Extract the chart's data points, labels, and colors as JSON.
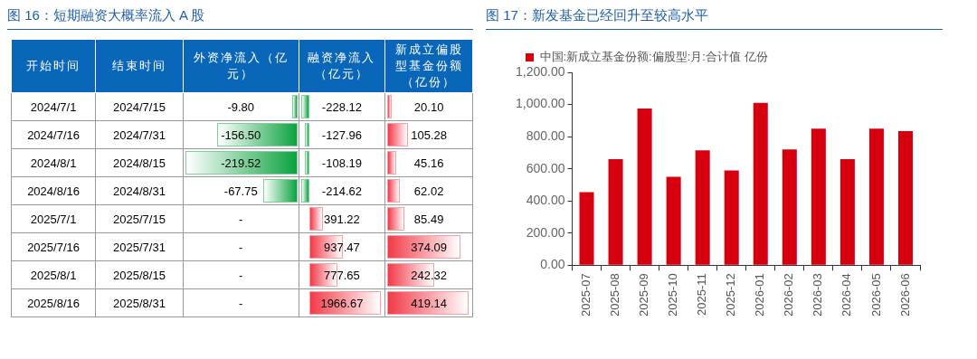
{
  "chart_data": [
    {
      "type": "heatmap",
      "title": "图 16：短期融资大概率流入 A 股",
      "annotations": [
        "开始时间",
        "结束时间"
      ],
      "categories": [
        "外资净流入（亿元）",
        "融资净流入（亿元）",
        "新成立偏股型基金份额（亿份）"
      ],
      "y2_categories": [
        "2024/7/1",
        "2024/7/16",
        "2024/8/1",
        "2024/8/16",
        "2025/7/1",
        "2025/7/16",
        "2025/8/1",
        "2025/8/16"
      ],
      "y_categories": [
        "2024/7/15",
        "2024/7/31",
        "2024/8/15",
        "2024/8/31",
        "2025/7/15",
        "2025/7/31",
        "2025/8/15",
        "2025/8/31"
      ],
      "cells": [
        [
          -9.8,
          -228.12,
          20.1
        ],
        [
          -156.5,
          -127.96,
          105.28
        ],
        [
          -219.52,
          -108.19,
          45.16
        ],
        [
          -67.75,
          -214.62,
          62.02
        ],
        [
          null,
          391.22,
          85.49
        ],
        [
          null,
          937.47,
          374.09
        ],
        [
          null,
          777.65,
          242.32
        ],
        [
          null,
          1966.67,
          419.14
        ]
      ],
      "cell_labels": [
        [
          "-9.80",
          "-228.12",
          "20.10"
        ],
        [
          "-156.50",
          "-127.96",
          "105.28"
        ],
        [
          "-219.52",
          "-108.19",
          "45.16"
        ],
        [
          "-67.75",
          "-214.62",
          "62.02"
        ],
        [
          "-",
          "391.22",
          "85.49"
        ],
        [
          "-",
          "937.47",
          "374.09"
        ],
        [
          "-",
          "777.65",
          "242.32"
        ],
        [
          "-",
          "1966.67",
          "419.14"
        ]
      ]
    },
    {
      "type": "bar",
      "title": "图 17：新发基金已经回升至较高水平",
      "categories": [
        "2025-07",
        "2025-08",
        "2025-09",
        "2025-10",
        "2025-11",
        "2025-12",
        "2026-01",
        "2026-02",
        "2026-03",
        "2026-04",
        "2026-05",
        "2026-06"
      ],
      "series": [
        {
          "name": "中国:新成立基金份额:偏股型:月:合计值 亿份",
          "color": "#d7000f",
          "values": [
            455,
            660,
            975,
            550,
            715,
            590,
            1010,
            720,
            850,
            660,
            850,
            835
          ]
        }
      ],
      "ylim": [
        0,
        1200
      ],
      "yticks": [
        {
          "value": 0,
          "label": "0.00"
        },
        {
          "value": 200,
          "label": "200.00"
        },
        {
          "value": 400,
          "label": "400.00"
        },
        {
          "value": 600,
          "label": "600.00"
        },
        {
          "value": 800,
          "label": "800.00"
        },
        {
          "value": 1000,
          "label": "1,000.00"
        },
        {
          "value": 1200,
          "label": "1,200.00"
        }
      ],
      "grid": false,
      "legend": "top left"
    }
  ]
}
